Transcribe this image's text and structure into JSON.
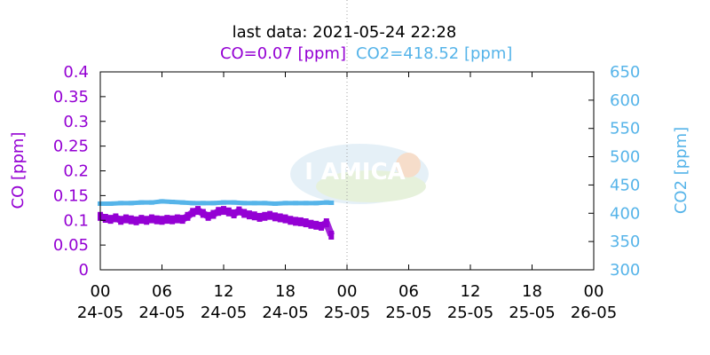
{
  "header": {
    "last_data": "last data: 2021-05-24 22:28",
    "co_reading": "CO=0.07 [ppm]",
    "co2_reading": "CO2=418.52 [ppm]"
  },
  "logo": {
    "text": "I AMICA"
  },
  "colors": {
    "co": "#9400d3",
    "co2": "#56b4e9",
    "axis": "#000000",
    "now_line": "#a0a0a0"
  },
  "chart_data": {
    "type": "scatter",
    "title": "last data: 2021-05-24 22:28",
    "x_ticks": [
      {
        "time": "00",
        "date": "24-05"
      },
      {
        "time": "06",
        "date": "24-05"
      },
      {
        "time": "12",
        "date": "24-05"
      },
      {
        "time": "18",
        "date": "24-05"
      },
      {
        "time": "00",
        "date": "25-05"
      },
      {
        "time": "06",
        "date": "25-05"
      },
      {
        "time": "12",
        "date": "25-05"
      },
      {
        "time": "18",
        "date": "25-05"
      },
      {
        "time": "00",
        "date": "26-05"
      }
    ],
    "xlim_hours": [
      0,
      48
    ],
    "current_time_hours": 24,
    "y_left": {
      "label": "CO [ppm]",
      "ylim": [
        0,
        0.4
      ],
      "ticks": [
        "0",
        "0.05",
        "0.1",
        "0.15",
        "0.2",
        "0.25",
        "0.3",
        "0.35",
        "0.4"
      ]
    },
    "y_right": {
      "label": "CO2 [ppm]",
      "ylim": [
        300,
        650
      ],
      "ticks": [
        "300",
        "350",
        "400",
        "450",
        "500",
        "550",
        "600",
        "650"
      ]
    },
    "series": [
      {
        "name": "CO",
        "axis": "left",
        "x": [
          0.0,
          0.5,
          1.0,
          1.5,
          2.0,
          2.5,
          3.0,
          3.5,
          4.0,
          4.5,
          5.0,
          5.5,
          6.0,
          6.5,
          7.0,
          7.5,
          8.0,
          8.5,
          9.0,
          9.5,
          10.0,
          10.5,
          11.0,
          11.5,
          12.0,
          12.5,
          13.0,
          13.5,
          14.0,
          14.5,
          15.0,
          15.5,
          16.0,
          16.5,
          17.0,
          17.5,
          18.0,
          18.5,
          19.0,
          19.5,
          20.0,
          20.5,
          21.0,
          21.5,
          22.0,
          22.47
        ],
        "values": [
          0.108,
          0.104,
          0.102,
          0.105,
          0.1,
          0.103,
          0.101,
          0.099,
          0.102,
          0.1,
          0.103,
          0.101,
          0.1,
          0.102,
          0.101,
          0.103,
          0.102,
          0.108,
          0.116,
          0.12,
          0.114,
          0.108,
          0.112,
          0.118,
          0.12,
          0.117,
          0.113,
          0.119,
          0.114,
          0.111,
          0.109,
          0.106,
          0.108,
          0.11,
          0.107,
          0.105,
          0.103,
          0.1,
          0.098,
          0.097,
          0.095,
          0.092,
          0.09,
          0.088,
          0.095,
          0.07
        ]
      },
      {
        "name": "CO2",
        "axis": "right",
        "x": [
          0.0,
          1.0,
          2.0,
          3.0,
          4.0,
          5.0,
          6.0,
          7.0,
          8.0,
          9.0,
          10.0,
          11.0,
          12.0,
          13.0,
          14.0,
          15.0,
          16.0,
          17.0,
          18.0,
          19.0,
          20.0,
          21.0,
          22.0,
          22.47
        ],
        "values": [
          417,
          417,
          418,
          418,
          419,
          419,
          421,
          420,
          419,
          418,
          418,
          418,
          419,
          419,
          418,
          418,
          418,
          417,
          418,
          418,
          418,
          418,
          419,
          418.52
        ]
      }
    ],
    "grid": false
  }
}
